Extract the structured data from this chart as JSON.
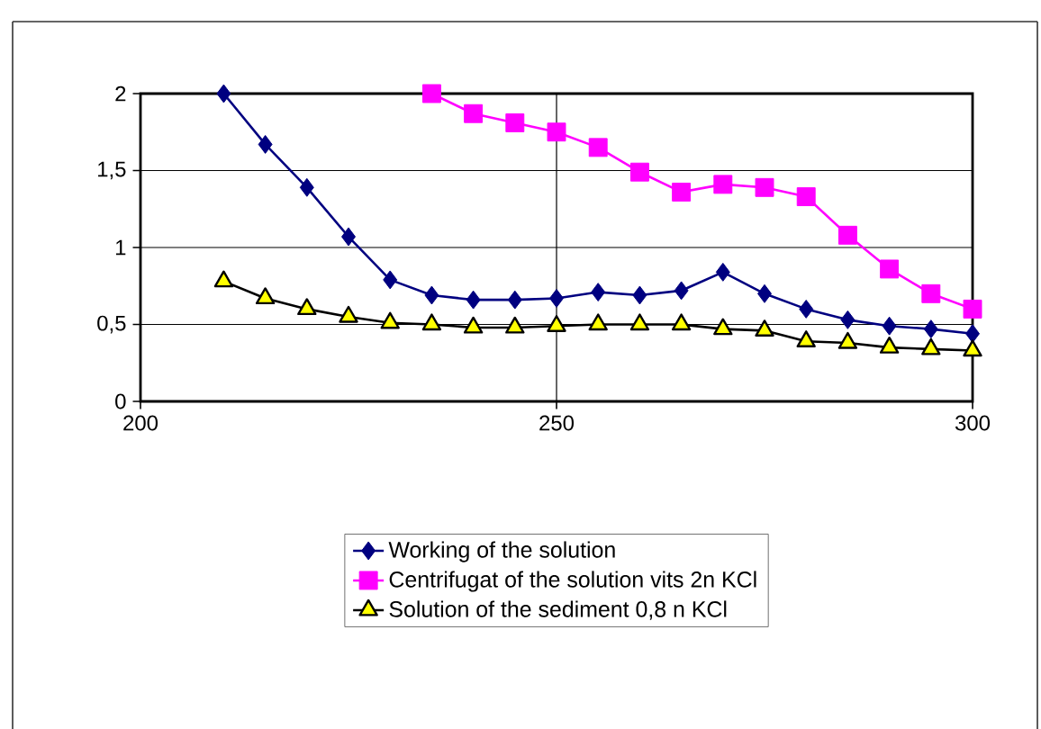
{
  "chart_data": {
    "type": "line",
    "x": [
      210,
      215,
      220,
      225,
      230,
      235,
      240,
      245,
      250,
      255,
      260,
      265,
      270,
      275,
      280,
      285,
      290,
      295,
      300
    ],
    "series": [
      {
        "name": "Working of the solution",
        "color": "#000080",
        "marker": "diamond",
        "values": [
          2.0,
          1.67,
          1.39,
          1.07,
          0.79,
          0.69,
          0.66,
          0.66,
          0.67,
          0.71,
          0.69,
          0.72,
          0.84,
          0.7,
          0.6,
          0.53,
          0.49,
          0.47,
          0.44
        ]
      },
      {
        "name": "Centrifugat of the solution vits 2n KCl",
        "color": "#ff00ff",
        "marker": "square",
        "values": [
          null,
          null,
          null,
          null,
          null,
          2.0,
          1.87,
          1.81,
          1.75,
          1.65,
          1.49,
          1.36,
          1.41,
          1.39,
          1.33,
          1.08,
          0.86,
          0.7,
          0.6
        ]
      },
      {
        "name": "Solution of the sediment 0,8 n  KCl",
        "color": "#ffff00",
        "marker": "triangle",
        "values": [
          0.78,
          0.67,
          0.6,
          0.55,
          0.51,
          0.5,
          0.48,
          0.48,
          0.49,
          0.5,
          0.5,
          0.5,
          0.47,
          0.46,
          0.39,
          0.38,
          0.35,
          0.34,
          0.33
        ]
      }
    ],
    "xlim": [
      200,
      300
    ],
    "xticks": [
      200,
      250,
      300
    ],
    "ylim": [
      0,
      2
    ],
    "yticks": [
      0,
      {
        "value": 0.5,
        "label": "0,5"
      },
      1,
      {
        "value": 1.5,
        "label": "1,5"
      },
      2
    ],
    "grid": true,
    "legend": "bottom"
  }
}
